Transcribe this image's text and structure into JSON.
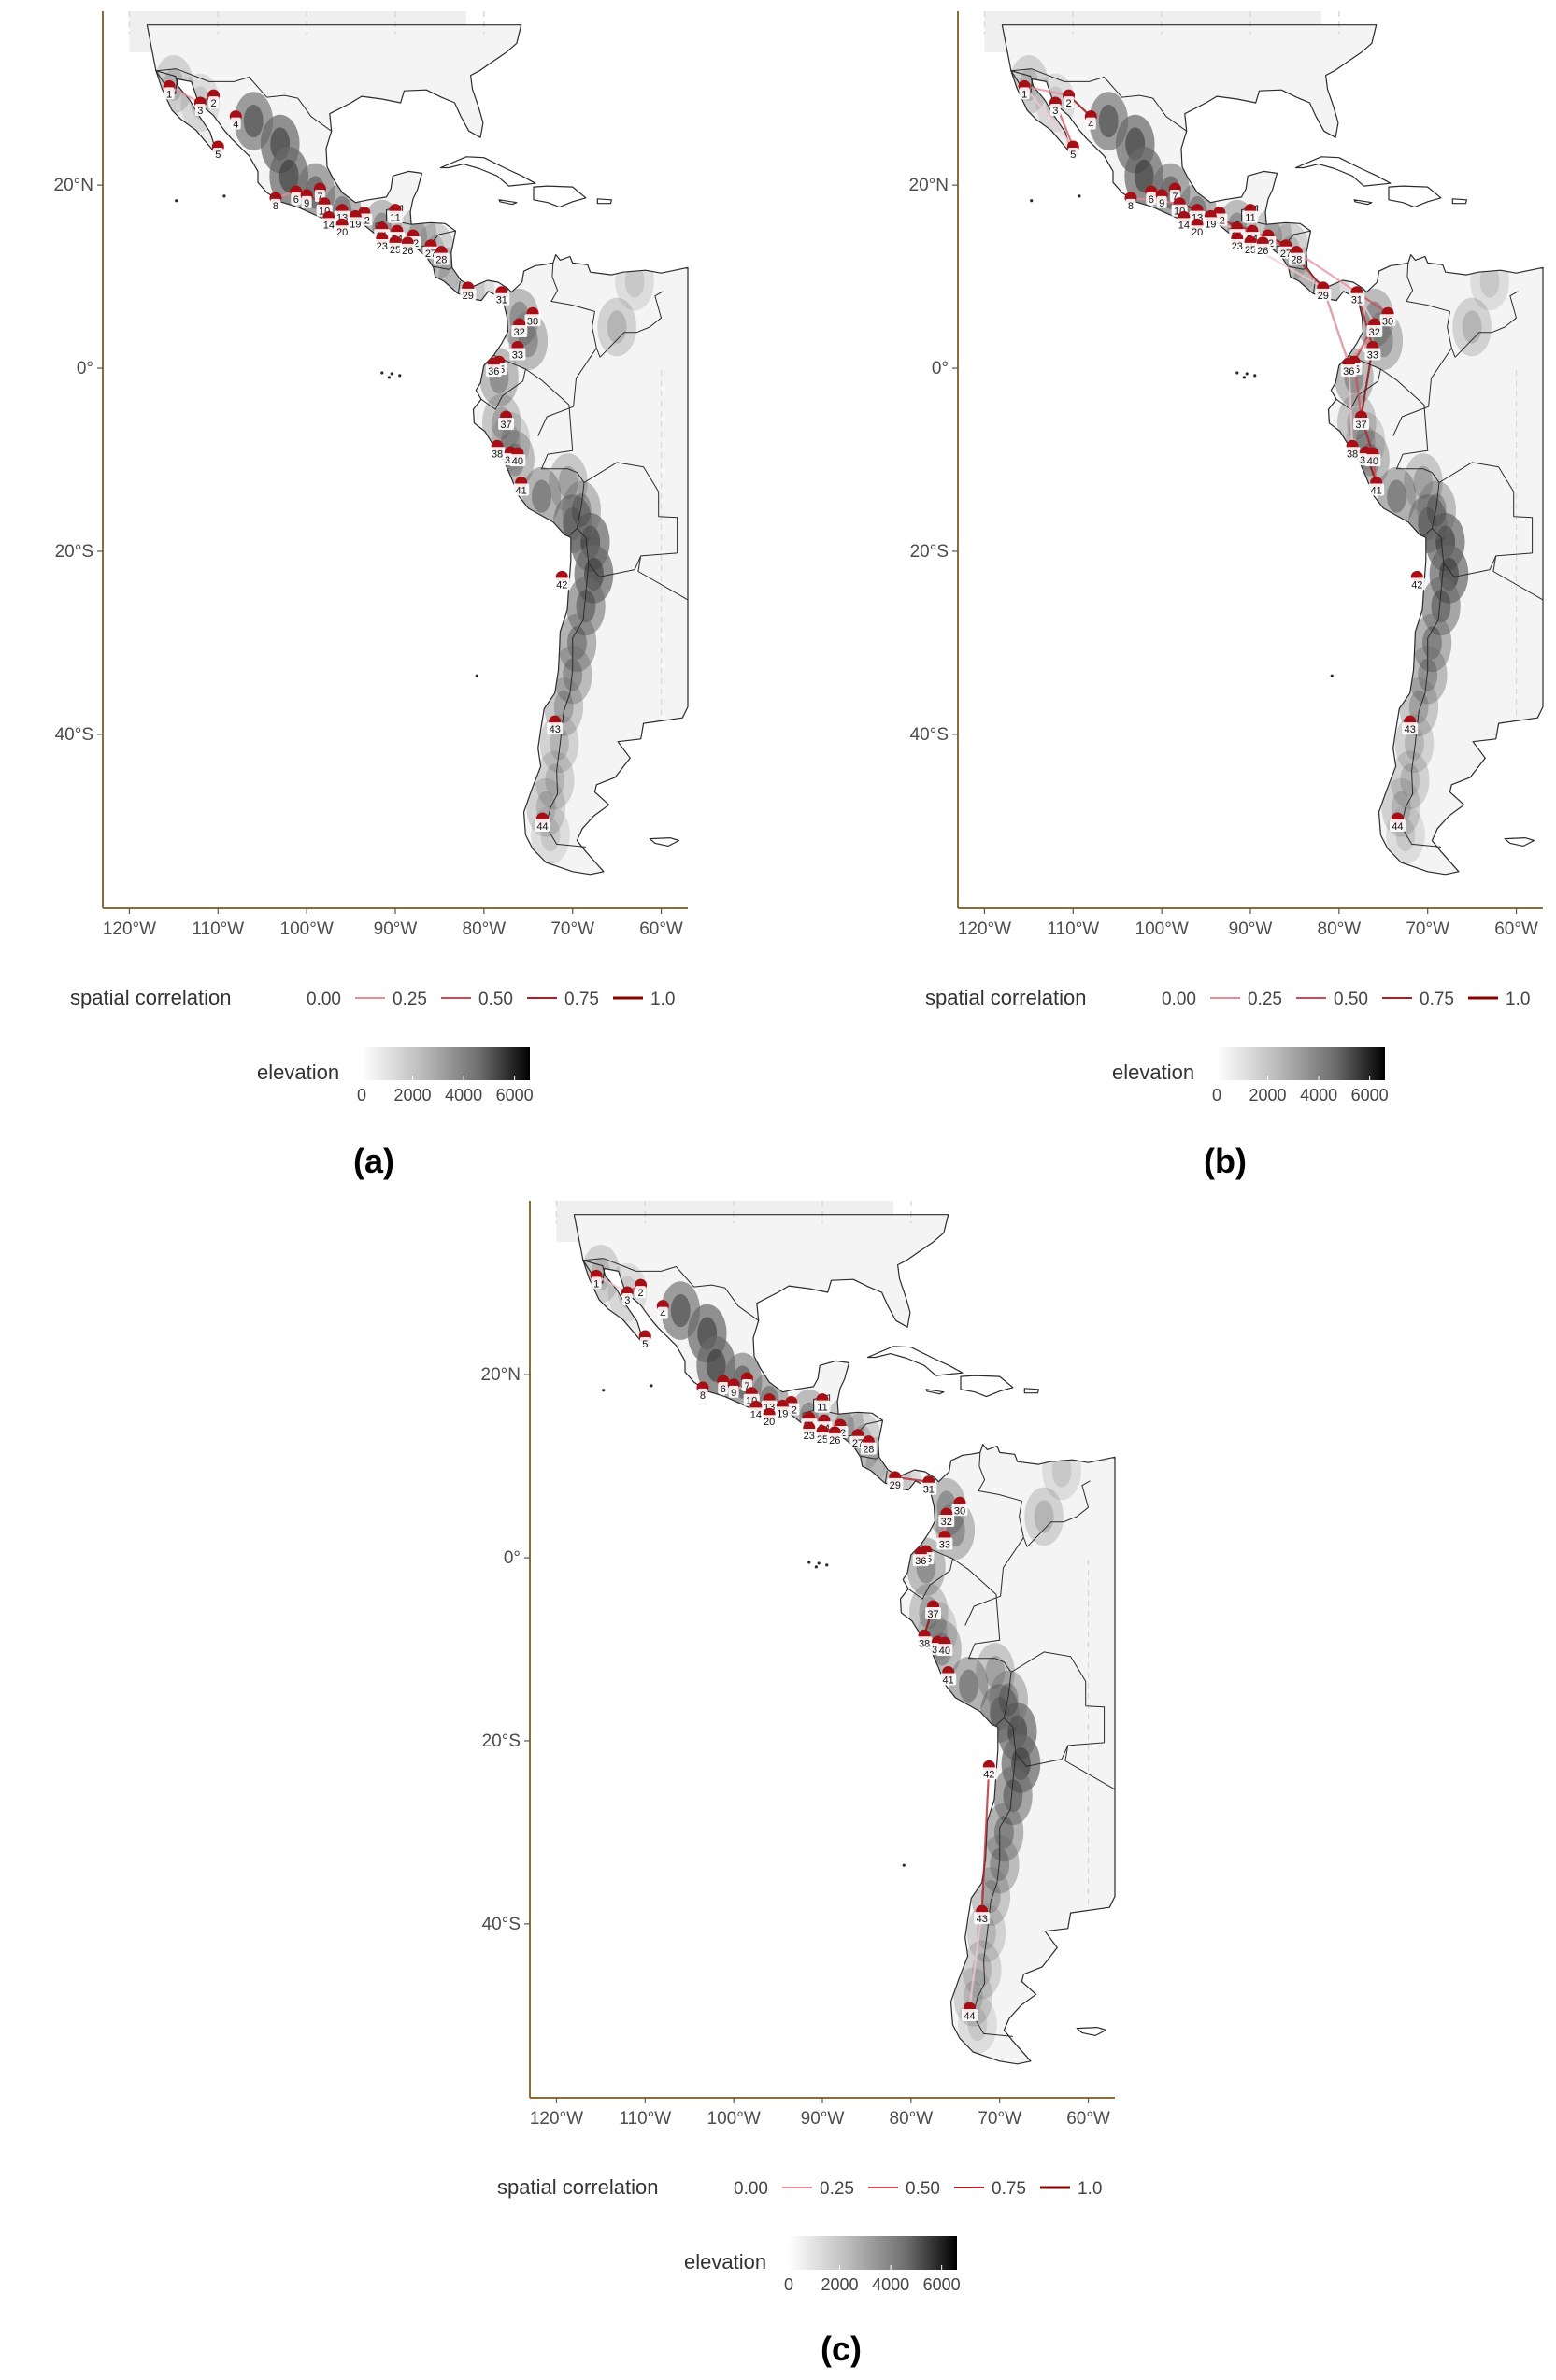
{
  "panels": [
    {
      "id": "a",
      "label": "(a)"
    },
    {
      "id": "b",
      "label": "(b)"
    },
    {
      "id": "c",
      "label": "(c)"
    }
  ],
  "axes": {
    "lon_ticks": [
      "120°W",
      "110°W",
      "100°W",
      "90°W",
      "80°W",
      "70°W",
      "60°W"
    ],
    "lon_values": [
      -120,
      -110,
      -100,
      -90,
      -80,
      -70,
      -60
    ],
    "lat_ticks": [
      "20°N",
      "0°",
      "20°S",
      "40°S"
    ],
    "lat_values": [
      20,
      0,
      -20,
      -40
    ],
    "lon_range": [
      -123,
      -57
    ],
    "lat_range": [
      -59,
      39
    ]
  },
  "legend": {
    "correlation_title": "spatial correlation",
    "correlation_values": [
      "0.00",
      "0.25",
      "0.50",
      "0.75",
      "1.0"
    ],
    "correlation_colors": [
      "#f4c7cf",
      "#e88a98",
      "#cf4a55",
      "#b01c22",
      "#8b0000"
    ],
    "elevation_title": "elevation",
    "elevation_ticks": [
      "0",
      "2000",
      "4000",
      "6000"
    ],
    "elevation_values": [
      0,
      2000,
      4000,
      6000
    ],
    "elevation_colors": [
      "#ffffff",
      "#000000"
    ]
  },
  "colors": {
    "site": "#a50f15",
    "border": "#2b2b2b",
    "axis": "#8a6d3b",
    "grid": "#d9d9d9"
  },
  "sites": [
    {
      "id": "1",
      "lon": -115.5,
      "lat": 30.8
    },
    {
      "id": "2",
      "lon": -110.5,
      "lat": 29.8
    },
    {
      "id": "3",
      "lon": -112.0,
      "lat": 29.0
    },
    {
      "id": "4",
      "lon": -108.0,
      "lat": 27.5
    },
    {
      "id": "5",
      "lon": -110.0,
      "lat": 24.2
    },
    {
      "id": "6",
      "lon": -101.2,
      "lat": 19.3
    },
    {
      "id": "7",
      "lon": -98.5,
      "lat": 19.6
    },
    {
      "id": "8",
      "lon": -103.5,
      "lat": 18.6
    },
    {
      "id": "9",
      "lon": -100.0,
      "lat": 18.9
    },
    {
      "id": "10",
      "lon": -98.0,
      "lat": 18.0
    },
    {
      "id": "11",
      "lon": -90.0,
      "lat": 17.3
    },
    {
      "id": "12",
      "lon": -93.5,
      "lat": 17.0
    },
    {
      "id": "13",
      "lon": -96.0,
      "lat": 17.3
    },
    {
      "id": "14",
      "lon": -97.5,
      "lat": 16.5
    },
    {
      "id": "19",
      "lon": -94.5,
      "lat": 16.6
    },
    {
      "id": "20",
      "lon": -96.0,
      "lat": 15.7
    },
    {
      "id": "21",
      "lon": -91.5,
      "lat": 15.3
    },
    {
      "id": "22",
      "lon": -88.0,
      "lat": 14.5
    },
    {
      "id": "23",
      "lon": -91.5,
      "lat": 14.2
    },
    {
      "id": "24",
      "lon": -89.8,
      "lat": 15.0
    },
    {
      "id": "25",
      "lon": -90.0,
      "lat": 13.8
    },
    {
      "id": "26",
      "lon": -88.6,
      "lat": 13.7
    },
    {
      "id": "27",
      "lon": -86.0,
      "lat": 13.4
    },
    {
      "id": "28",
      "lon": -84.8,
      "lat": 12.7
    },
    {
      "id": "29",
      "lon": -81.8,
      "lat": 8.8
    },
    {
      "id": "30",
      "lon": -74.5,
      "lat": 6.0
    },
    {
      "id": "31",
      "lon": -78.0,
      "lat": 8.3
    },
    {
      "id": "32",
      "lon": -76.0,
      "lat": 4.8
    },
    {
      "id": "33",
      "lon": -76.2,
      "lat": 2.3
    },
    {
      "id": "35",
      "lon": -78.3,
      "lat": 0.7
    },
    {
      "id": "36",
      "lon": -78.9,
      "lat": 0.5
    },
    {
      "id": "37",
      "lon": -77.5,
      "lat": -5.3
    },
    {
      "id": "38",
      "lon": -78.5,
      "lat": -8.5
    },
    {
      "id": "39",
      "lon": -77.0,
      "lat": -9.2
    },
    {
      "id": "40",
      "lon": -76.2,
      "lat": -9.3
    },
    {
      "id": "41",
      "lon": -75.8,
      "lat": -12.5
    },
    {
      "id": "42",
      "lon": -71.2,
      "lat": -22.8
    },
    {
      "id": "43",
      "lon": -72.0,
      "lat": -38.6
    },
    {
      "id": "44",
      "lon": -73.4,
      "lat": -49.2
    }
  ]
}
